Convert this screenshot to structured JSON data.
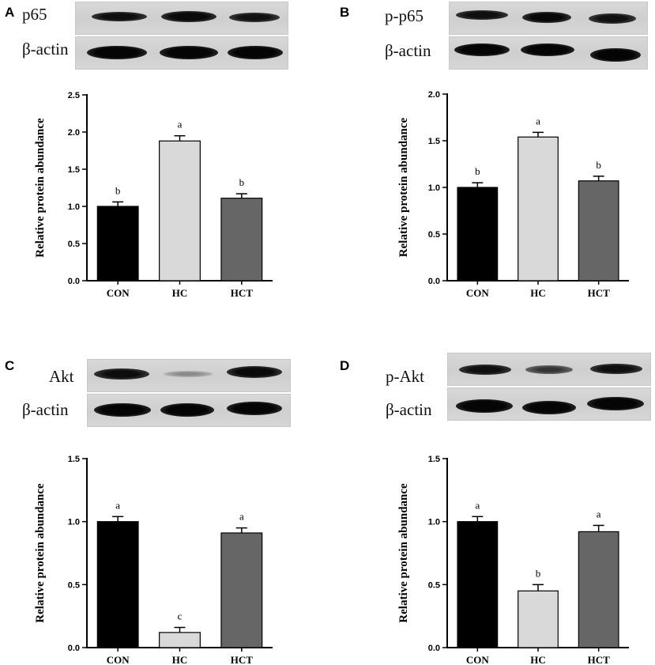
{
  "panels": [
    {
      "letter": "A",
      "blot": {
        "protein_label": "p65",
        "control_label": "β-actin"
      },
      "chart_data": {
        "type": "bar",
        "categories": [
          "CON",
          "HC",
          "HCT"
        ],
        "values": [
          1.0,
          1.88,
          1.11
        ],
        "errors": [
          0.06,
          0.07,
          0.06
        ],
        "significance": [
          "b",
          "a",
          "b"
        ],
        "colors": [
          "#000000",
          "#d9d9d9",
          "#666666"
        ],
        "xlabel": "",
        "ylabel": "Relative protein abundance",
        "ylim": [
          0,
          2.5
        ],
        "yticks": [
          "0.0",
          "0.5",
          "1.0",
          "1.5",
          "2.0",
          "2.5"
        ]
      }
    },
    {
      "letter": "B",
      "blot": {
        "protein_label": "p-p65",
        "control_label": "β-actin"
      },
      "chart_data": {
        "type": "bar",
        "categories": [
          "CON",
          "HC",
          "HCT"
        ],
        "values": [
          1.0,
          1.54,
          1.07
        ],
        "errors": [
          0.05,
          0.05,
          0.05
        ],
        "significance": [
          "b",
          "a",
          "b"
        ],
        "colors": [
          "#000000",
          "#d9d9d9",
          "#666666"
        ],
        "xlabel": "",
        "ylabel": "Relative protein abundance",
        "ylim": [
          0,
          2.0
        ],
        "yticks": [
          "0.0",
          "0.5",
          "1.0",
          "1.5",
          "2.0"
        ]
      }
    },
    {
      "letter": "C",
      "blot": {
        "protein_label": "Akt",
        "control_label": "β-actin"
      },
      "chart_data": {
        "type": "bar",
        "categories": [
          "CON",
          "HC",
          "HCT"
        ],
        "values": [
          1.0,
          0.12,
          0.91
        ],
        "errors": [
          0.04,
          0.04,
          0.04
        ],
        "significance": [
          "a",
          "c",
          "a"
        ],
        "colors": [
          "#000000",
          "#d9d9d9",
          "#666666"
        ],
        "xlabel": "",
        "ylabel": "Relative protein abundance",
        "ylim": [
          0,
          1.5
        ],
        "yticks": [
          "0.0",
          "0.5",
          "1.0",
          "1.5"
        ]
      }
    },
    {
      "letter": "D",
      "blot": {
        "protein_label": "p-Akt",
        "control_label": "β-actin"
      },
      "chart_data": {
        "type": "bar",
        "categories": [
          "CON",
          "HC",
          "HCT"
        ],
        "values": [
          1.0,
          0.45,
          0.92
        ],
        "errors": [
          0.04,
          0.05,
          0.05
        ],
        "significance": [
          "a",
          "b",
          "a"
        ],
        "colors": [
          "#000000",
          "#d9d9d9",
          "#666666"
        ],
        "xlabel": "",
        "ylabel": "Relative protein abundance",
        "ylim": [
          0,
          1.5
        ],
        "yticks": [
          "0.0",
          "0.5",
          "1.0",
          "1.5"
        ]
      }
    }
  ]
}
